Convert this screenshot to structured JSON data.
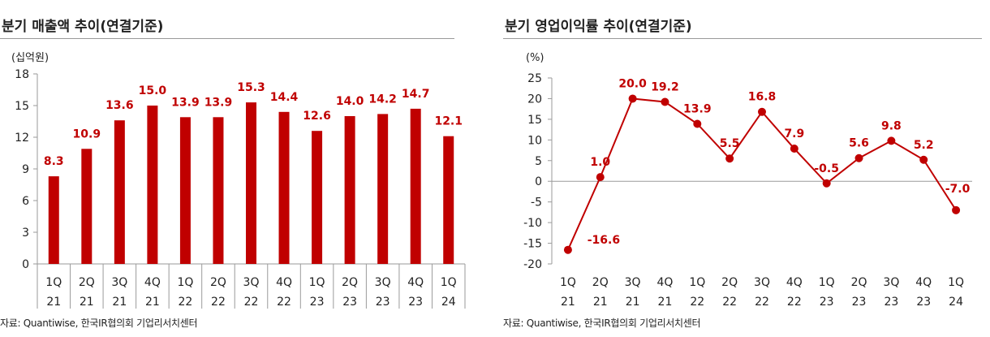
{
  "chart_data": [
    {
      "type": "bar",
      "title": "분기 매출액 추이(연결기준)",
      "unit_label": "(십억원)",
      "categories": [
        {
          "q": "1Q",
          "y": "21"
        },
        {
          "q": "2Q",
          "y": "21"
        },
        {
          "q": "3Q",
          "y": "21"
        },
        {
          "q": "4Q",
          "y": "21"
        },
        {
          "q": "1Q",
          "y": "22"
        },
        {
          "q": "2Q",
          "y": "22"
        },
        {
          "q": "3Q",
          "y": "22"
        },
        {
          "q": "4Q",
          "y": "22"
        },
        {
          "q": "1Q",
          "y": "23"
        },
        {
          "q": "2Q",
          "y": "23"
        },
        {
          "q": "3Q",
          "y": "23"
        },
        {
          "q": "4Q",
          "y": "23"
        },
        {
          "q": "1Q",
          "y": "24"
        }
      ],
      "values": [
        8.3,
        10.9,
        13.6,
        15.0,
        13.9,
        13.9,
        15.3,
        14.4,
        12.6,
        14.0,
        14.2,
        14.7,
        12.1
      ],
      "value_labels": [
        "8.3",
        "10.9",
        "13.6",
        "15.0",
        "13.9",
        "13.9",
        "15.3",
        "14.4",
        "12.6",
        "14.0",
        "14.2",
        "14.7",
        "12.1"
      ],
      "yticks": [
        "0",
        "3",
        "6",
        "9",
        "12",
        "15",
        "18"
      ],
      "ylim": [
        0,
        18
      ],
      "color": "#c00000",
      "grid": false,
      "source": "자료: Quantiwise, 한국IR협의회 기업리서치센터"
    },
    {
      "type": "line",
      "title": "분기 영업이익률 추이(연결기준)",
      "unit_label": "(%)",
      "categories": [
        {
          "q": "1Q",
          "y": "21"
        },
        {
          "q": "2Q",
          "y": "21"
        },
        {
          "q": "3Q",
          "y": "21"
        },
        {
          "q": "4Q",
          "y": "21"
        },
        {
          "q": "1Q",
          "y": "22"
        },
        {
          "q": "2Q",
          "y": "22"
        },
        {
          "q": "3Q",
          "y": "22"
        },
        {
          "q": "4Q",
          "y": "22"
        },
        {
          "q": "1Q",
          "y": "23"
        },
        {
          "q": "2Q",
          "y": "23"
        },
        {
          "q": "3Q",
          "y": "23"
        },
        {
          "q": "4Q",
          "y": "23"
        },
        {
          "q": "1Q",
          "y": "24"
        }
      ],
      "values": [
        -16.6,
        1.0,
        20.0,
        19.2,
        13.9,
        5.5,
        16.8,
        7.9,
        -0.5,
        5.6,
        9.8,
        5.2,
        -7.0
      ],
      "value_labels": [
        "-16.6",
        "1.0",
        "20.0",
        "19.2",
        "13.9",
        "5.5",
        "16.8",
        "7.9",
        "-0.5",
        "5.6",
        "9.8",
        "5.2",
        "-7.0"
      ],
      "yticks": [
        "-20",
        "-15",
        "-10",
        "-5",
        "0",
        "5",
        "10",
        "15",
        "20",
        "25"
      ],
      "ylim": [
        -20,
        25
      ],
      "color": "#c00000",
      "grid": false,
      "source": "자료: Quantiwise, 한국IR협의회 기업리서치센터"
    }
  ]
}
